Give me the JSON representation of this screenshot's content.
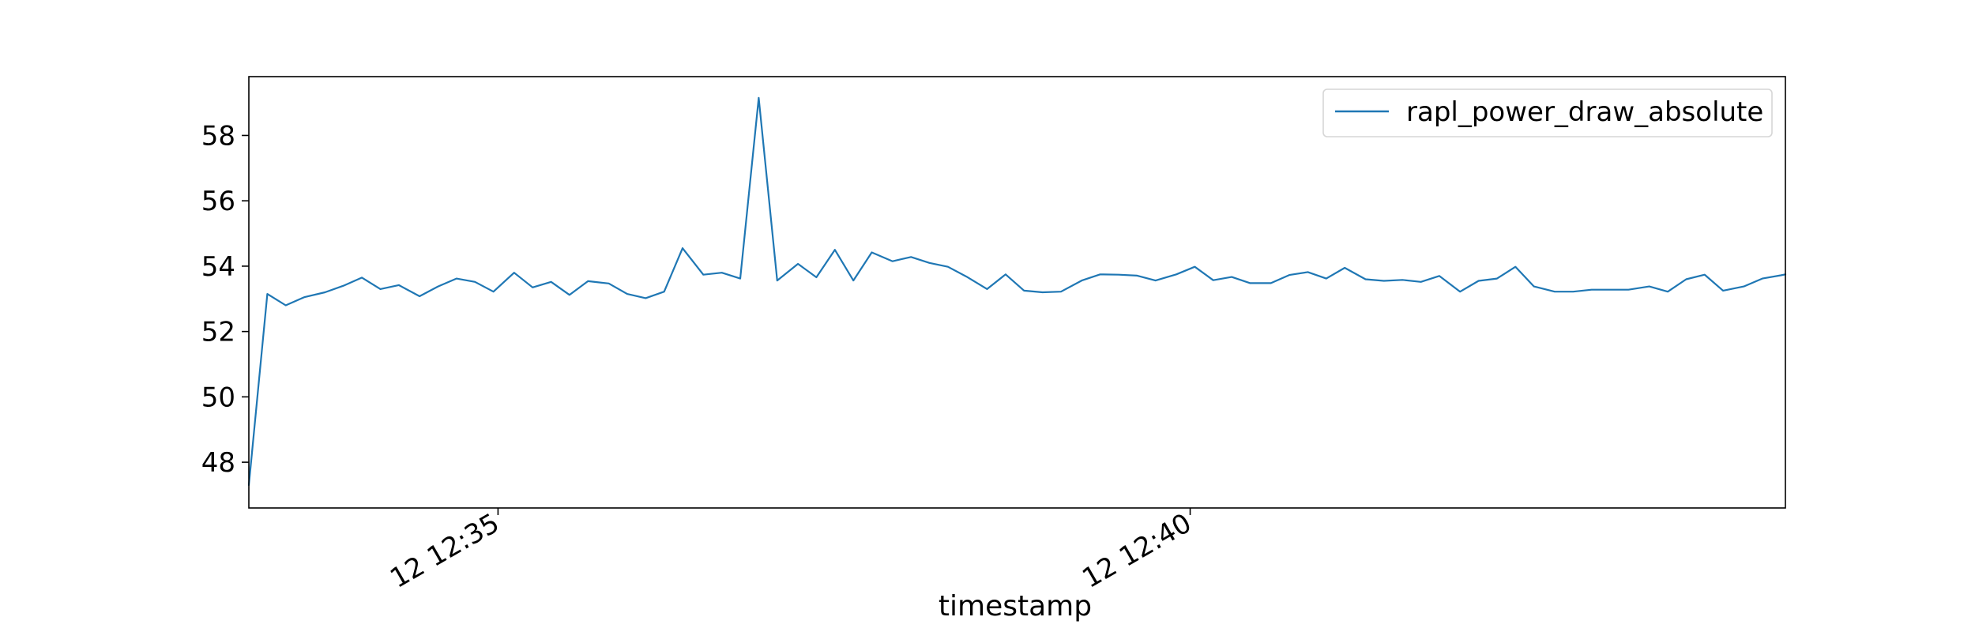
{
  "chart_data": {
    "type": "line",
    "title": "",
    "xlabel": "timestamp",
    "ylabel": "",
    "x_range": [
      "12 12:33:12",
      "12 12:44:18"
    ],
    "ylim": [
      46.6,
      59.8
    ],
    "y_ticks": [
      48,
      50,
      52,
      54,
      56,
      58
    ],
    "x_ticks": [
      {
        "value": "12 12:35:00",
        "label": "12 12:35"
      },
      {
        "value": "12 12:40:00",
        "label": "12 12:40"
      }
    ],
    "grid": false,
    "legend": {
      "position": "top-right"
    },
    "series": [
      {
        "name": "rapl_power_draw_absolute",
        "color": "#1f77b4",
        "x": [
          "12 12:33:12",
          "12 12:33:20",
          "12 12:33:28",
          "12 12:33:36",
          "12 12:33:45",
          "12 12:33:53",
          "12 12:34:01",
          "12 12:34:09",
          "12 12:34:17",
          "12 12:34:26",
          "12 12:34:34",
          "12 12:34:42",
          "12 12:34:50",
          "12 12:34:58",
          "12 12:35:07",
          "12 12:35:15",
          "12 12:35:23",
          "12 12:35:31",
          "12 12:35:39",
          "12 12:35:48",
          "12 12:35:56",
          "12 12:36:04",
          "12 12:36:12",
          "12 12:36:20",
          "12 12:36:29",
          "12 12:36:37",
          "12 12:36:45",
          "12 12:36:53",
          "12 12:37:01",
          "12 12:37:10",
          "12 12:37:18",
          "12 12:37:26",
          "12 12:37:34",
          "12 12:37:42",
          "12 12:37:51",
          "12 12:37:59",
          "12 12:38:07",
          "12 12:38:15",
          "12 12:38:23",
          "12 12:38:32",
          "12 12:38:40",
          "12 12:38:48",
          "12 12:38:56",
          "12 12:39:04",
          "12 12:39:13",
          "12 12:39:21",
          "12 12:39:29",
          "12 12:39:37",
          "12 12:39:45",
          "12 12:39:54",
          "12 12:40:02",
          "12 12:40:10",
          "12 12:40:18",
          "12 12:40:26",
          "12 12:40:35",
          "12 12:40:43",
          "12 12:40:51",
          "12 12:40:59",
          "12 12:41:07",
          "12 12:41:16",
          "12 12:41:24",
          "12 12:41:32",
          "12 12:41:40",
          "12 12:41:48",
          "12 12:41:57",
          "12 12:42:05",
          "12 12:42:13",
          "12 12:42:21",
          "12 12:42:29",
          "12 12:42:38",
          "12 12:42:46",
          "12 12:42:54",
          "12 12:43:02",
          "12 12:43:10",
          "12 12:43:19",
          "12 12:43:27",
          "12 12:43:35",
          "12 12:43:43",
          "12 12:43:51",
          "12 12:44:00",
          "12 12:44:08",
          "12 12:44:16",
          "12 12:44:18"
        ],
        "values": [
          47.3,
          53.15,
          52.8,
          53.05,
          53.2,
          53.4,
          53.65,
          53.3,
          53.42,
          53.08,
          53.38,
          53.62,
          53.52,
          53.22,
          53.8,
          53.35,
          53.52,
          53.12,
          53.54,
          53.47,
          53.15,
          53.02,
          53.22,
          54.55,
          53.74,
          53.8,
          53.62,
          59.15,
          53.56,
          54.07,
          53.66,
          54.5,
          53.56,
          54.42,
          54.15,
          54.28,
          54.1,
          53.98,
          53.68,
          53.3,
          53.75,
          53.25,
          53.2,
          53.22,
          53.56,
          53.75,
          53.74,
          53.71,
          53.56,
          53.75,
          53.98,
          53.57,
          53.67,
          53.48,
          53.48,
          53.73,
          53.82,
          53.62,
          53.95,
          53.6,
          53.55,
          53.58,
          53.52,
          53.7,
          53.22,
          53.55,
          53.62,
          53.98,
          53.38,
          53.22,
          53.22,
          53.28,
          53.28,
          53.28,
          53.38,
          53.22,
          53.6,
          53.74,
          53.25,
          53.38,
          53.62,
          53.72,
          53.75
        ]
      }
    ]
  }
}
